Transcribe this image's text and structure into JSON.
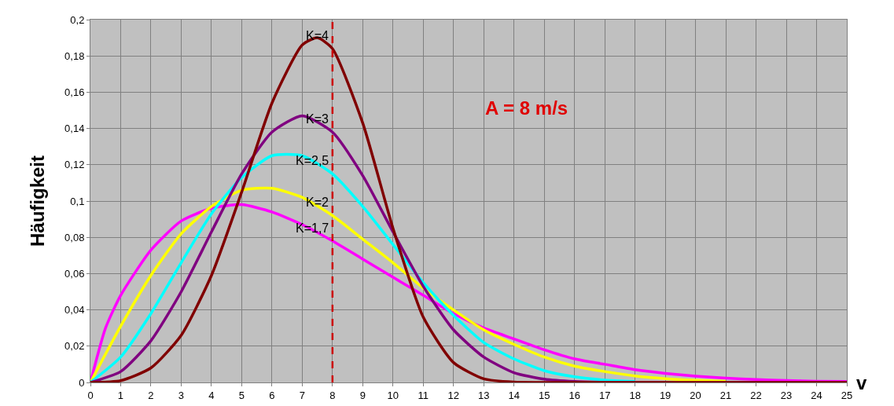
{
  "chart_data": {
    "type": "line",
    "xlabel": "v",
    "ylabel": "Häufigkeit",
    "xlim": [
      0,
      25
    ],
    "ylim": [
      0,
      0.2
    ],
    "xticks": [
      0,
      1,
      2,
      3,
      4,
      5,
      6,
      7,
      8,
      9,
      10,
      11,
      12,
      13,
      14,
      15,
      16,
      17,
      18,
      19,
      20,
      21,
      22,
      23,
      24,
      25
    ],
    "yticks": [
      {
        "value": 0,
        "label": "0"
      },
      {
        "value": 0.02,
        "label": "0,02"
      },
      {
        "value": 0.04,
        "label": "0,04"
      },
      {
        "value": 0.06,
        "label": "0,06"
      },
      {
        "value": 0.08,
        "label": "0,08"
      },
      {
        "value": 0.1,
        "label": "0,1"
      },
      {
        "value": 0.12,
        "label": "0,12"
      },
      {
        "value": 0.14,
        "label": "0,14"
      },
      {
        "value": 0.16,
        "label": "0,16"
      },
      {
        "value": 0.18,
        "label": "0,18"
      },
      {
        "value": 0.2,
        "label": "0,2"
      }
    ],
    "grid": true,
    "legend": false,
    "marker": "none",
    "line_style": "solid",
    "series": [
      {
        "name": "K=1,7",
        "color": "#ff00ff",
        "x": [
          0,
          0.5,
          1,
          2,
          3,
          4,
          5,
          6,
          7,
          8,
          9,
          10,
          11,
          12,
          13,
          14,
          15,
          16,
          17,
          18,
          19,
          20,
          21,
          22,
          23,
          24,
          25
        ],
        "values": [
          0,
          0.03,
          0.048,
          0.073,
          0.089,
          0.096,
          0.098,
          0.094,
          0.087,
          0.078,
          0.068,
          0.058,
          0.048,
          0.038,
          0.03,
          0.024,
          0.018,
          0.013,
          0.01,
          0.007,
          0.005,
          0.0035,
          0.0024,
          0.0016,
          0.0011,
          0.0007,
          0.0005
        ]
      },
      {
        "name": "K=2",
        "color": "#ffff00",
        "x": [
          0,
          1,
          2,
          3,
          4,
          5,
          6,
          7,
          8,
          9,
          10,
          11,
          12,
          13,
          14,
          15,
          16,
          17,
          18,
          19,
          20,
          21
        ],
        "values": [
          0,
          0.031,
          0.059,
          0.082,
          0.097,
          0.106,
          0.107,
          0.102,
          0.092,
          0.079,
          0.066,
          0.052,
          0.04,
          0.029,
          0.021,
          0.014,
          0.009,
          0.006,
          0.0036,
          0.0021,
          0.0012,
          0.0006
        ]
      },
      {
        "name": "K=2,5",
        "color": "#00ffff",
        "x": [
          0,
          1,
          2,
          3,
          4,
          5,
          6,
          7,
          8,
          9,
          10,
          11,
          12,
          13,
          14,
          15,
          16,
          17,
          18
        ],
        "values": [
          0,
          0.014,
          0.038,
          0.066,
          0.093,
          0.113,
          0.125,
          0.125,
          0.115,
          0.097,
          0.076,
          0.055,
          0.037,
          0.022,
          0.013,
          0.0065,
          0.0031,
          0.0013,
          0.0005
        ]
      },
      {
        "name": "K=3",
        "color": "#800080",
        "x": [
          0,
          1,
          2,
          3,
          4,
          5,
          6,
          7,
          8,
          9,
          10,
          11,
          12,
          13,
          14,
          15,
          16,
          17,
          18,
          25
        ],
        "values": [
          0,
          0.006,
          0.023,
          0.05,
          0.083,
          0.115,
          0.138,
          0.147,
          0.138,
          0.114,
          0.083,
          0.053,
          0.029,
          0.014,
          0.0054,
          0.0018,
          0.0005,
          0.0001,
          0,
          0
        ]
      },
      {
        "name": "K=4",
        "color": "#800000",
        "x": [
          0,
          1,
          2,
          3,
          4,
          5,
          6,
          7,
          7.5,
          8,
          9,
          10,
          11,
          12,
          13,
          14,
          15,
          25
        ],
        "values": [
          0,
          0.001,
          0.008,
          0.026,
          0.059,
          0.105,
          0.154,
          0.186,
          0.19,
          0.184,
          0.143,
          0.085,
          0.036,
          0.011,
          0.002,
          0.0002,
          0,
          0
        ]
      }
    ],
    "ref_lines": [
      {
        "axis": "x",
        "value": 8,
        "color": "#cc0000",
        "line_style": "dashed"
      }
    ],
    "annotations": [
      "A = 8 m/s"
    ]
  }
}
